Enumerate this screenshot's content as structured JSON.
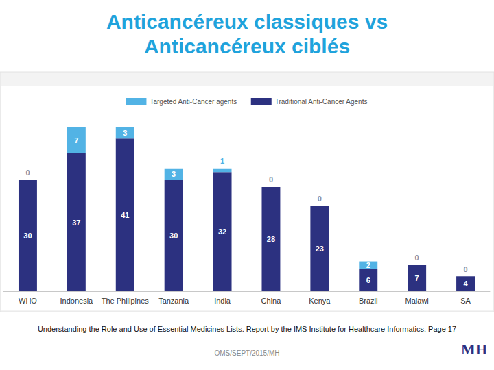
{
  "chart_data": {
    "type": "bar",
    "title": "Anticancéreux classiques vs\nAnticancéreux ciblés",
    "categories": [
      "WHO",
      "Indonesia",
      "The Philipines",
      "Tanzania",
      "India",
      "China",
      "Kenya",
      "Brazil",
      "Malawi",
      "SA"
    ],
    "series": [
      {
        "name": "Targeted Anti-Cancer agents",
        "color": "#52b3e5",
        "values": [
          0,
          7,
          3,
          3,
          1,
          0,
          0,
          2,
          0,
          0
        ]
      },
      {
        "name": "Traditional Anti-Cancer Agents",
        "color": "#2c3180",
        "values": [
          30,
          37,
          41,
          30,
          32,
          28,
          23,
          6,
          7,
          4
        ]
      }
    ],
    "stacked": true,
    "data_labels": true,
    "legend": "top",
    "grid": false,
    "tick_labels": "x",
    "ylim": [
      0,
      44
    ]
  },
  "source": "Understanding the Role and Use of Essential Medicines Lists. Report by the IMS Institute for Healthcare Informatics. Page 17",
  "footer": "OMS/SEPT/2015/MH",
  "logo": "MH"
}
